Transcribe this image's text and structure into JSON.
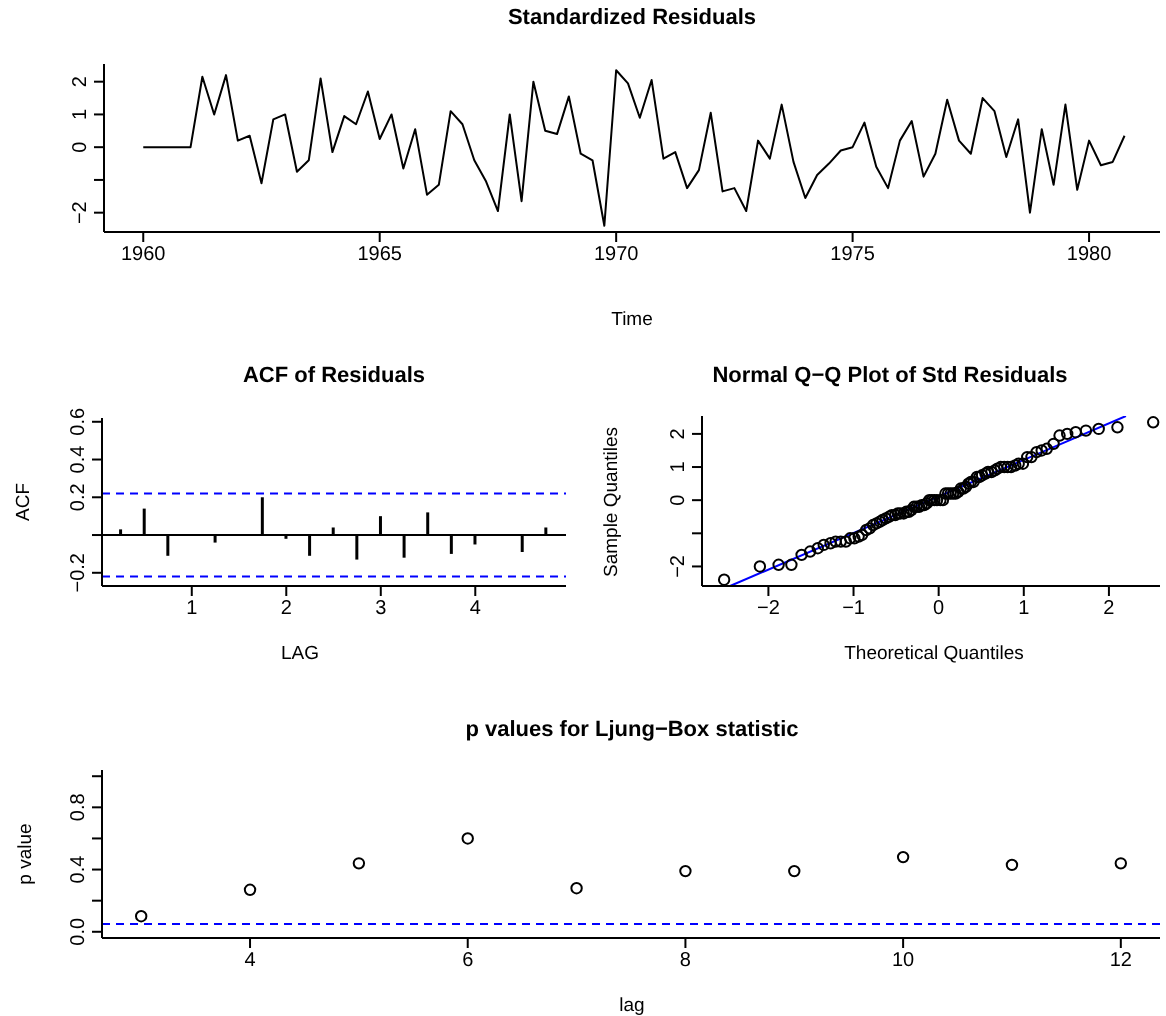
{
  "chart_data": [
    {
      "type": "line",
      "title": "Standardized Residuals",
      "xlabel": "Time",
      "color": "#000000",
      "x": [
        1960,
        1960.25,
        1960.5,
        1960.75,
        1961,
        1961.25,
        1961.5,
        1961.75,
        1962,
        1962.25,
        1962.5,
        1962.75,
        1963,
        1963.25,
        1963.5,
        1963.75,
        1964,
        1964.25,
        1964.5,
        1964.75,
        1965,
        1965.25,
        1965.5,
        1965.75,
        1966,
        1966.25,
        1966.5,
        1966.75,
        1967,
        1967.25,
        1967.5,
        1967.75,
        1968,
        1968.25,
        1968.5,
        1968.75,
        1969,
        1969.25,
        1969.5,
        1969.75,
        1970,
        1970.25,
        1970.5,
        1970.75,
        1971,
        1971.25,
        1971.5,
        1971.75,
        1972,
        1972.25,
        1972.5,
        1972.75,
        1973,
        1973.25,
        1973.5,
        1973.75,
        1974,
        1974.25,
        1974.5,
        1974.75,
        1975,
        1975.25,
        1975.5,
        1975.75,
        1976,
        1976.25,
        1976.5,
        1976.75,
        1977,
        1977.25,
        1977.5,
        1977.75,
        1978,
        1978.25,
        1978.5,
        1978.75,
        1979,
        1979.25,
        1979.5,
        1979.75,
        1980,
        1980.25,
        1980.5,
        1980.75
      ],
      "values": [
        0,
        0,
        0,
        0,
        0,
        2.15,
        1.0,
        2.2,
        0.2,
        0.35,
        -1.1,
        0.85,
        1.0,
        -0.75,
        -0.4,
        2.1,
        -0.15,
        0.95,
        0.7,
        1.7,
        0.25,
        1.0,
        -0.65,
        0.55,
        -1.45,
        -1.15,
        1.1,
        0.7,
        -0.4,
        -1.05,
        -1.95,
        1.0,
        -1.65,
        2.0,
        0.5,
        0.4,
        1.55,
        -0.2,
        -0.4,
        -2.4,
        2.35,
        1.95,
        0.9,
        2.05,
        -0.35,
        -0.15,
        -1.25,
        -0.7,
        1.05,
        -1.35,
        -1.25,
        -1.95,
        0.2,
        -0.35,
        1.3,
        -0.45,
        -1.55,
        -0.85,
        -0.5,
        -0.1,
        0.0,
        0.75,
        -0.6,
        -1.25,
        0.2,
        0.8,
        -0.9,
        -0.2,
        1.45,
        0.2,
        -0.2,
        1.5,
        1.1,
        -0.3,
        0.85,
        -2.0,
        0.55,
        -1.15,
        1.3,
        -1.3,
        0.2,
        -0.55,
        -0.45,
        0.35
      ],
      "xlim": [
        1959.17,
        1981.5
      ],
      "xticks": [
        1960,
        1965,
        1970,
        1975,
        1980
      ],
      "ylim": [
        -2.59,
        2.54
      ],
      "yticks": [
        -2,
        {
          "value": -1,
          "label": null
        },
        0,
        1,
        2
      ]
    },
    {
      "type": "bar",
      "title": "ACF of Residuals",
      "xlabel": "LAG",
      "ylabel": "ACF",
      "color": "#000000",
      "x": [
        0.25,
        0.5,
        0.75,
        1.0,
        1.25,
        1.5,
        1.75,
        2.0,
        2.25,
        2.5,
        2.75,
        3.0,
        3.25,
        3.5,
        3.75,
        4.0,
        4.25,
        4.5,
        4.75
      ],
      "values": [
        0.03,
        0.14,
        -0.11,
        0.0,
        -0.04,
        0.0,
        0.2,
        -0.02,
        -0.11,
        0.04,
        -0.13,
        0.1,
        -0.12,
        0.12,
        -0.1,
        -0.05,
        0.0,
        -0.09,
        0.04
      ],
      "xlim": [
        0.05,
        4.96
      ],
      "xticks": [
        1,
        2,
        3,
        4
      ],
      "ylim": [
        -0.27,
        0.62
      ],
      "yticks": [
        -0.2,
        {
          "value": 0,
          "label": null
        },
        0.2,
        0.4,
        0.6
      ],
      "ref_lines": [
        {
          "axis": "y",
          "value": 0.22,
          "color": "#0000ff",
          "line_style": "dashed"
        },
        {
          "axis": "y",
          "value": -0.22,
          "color": "#0000ff",
          "line_style": "dashed"
        },
        {
          "axis": "y",
          "value": 0,
          "color": "#000000",
          "line_style": "solid"
        }
      ]
    },
    {
      "type": "scatter",
      "title": "Normal Q−Q Plot of Std Residuals",
      "xlabel": "Theoretical Quantiles",
      "ylabel": "Sample Quantiles",
      "series": [
        {
          "marker": "circle",
          "color": "#000000",
          "x": [
            -2.52,
            -2.1,
            -1.88,
            -1.73,
            -1.61,
            -1.51,
            -1.42,
            -1.35,
            -1.27,
            -1.21,
            -1.15,
            -1.09,
            -1.04,
            -0.99,
            -0.94,
            -0.9,
            -0.85,
            -0.81,
            -0.77,
            -0.73,
            -0.69,
            -0.66,
            -0.62,
            -0.58,
            -0.55,
            -0.51,
            -0.48,
            -0.45,
            -0.41,
            -0.38,
            -0.35,
            -0.32,
            -0.29,
            -0.26,
            -0.23,
            -0.2,
            -0.17,
            -0.14,
            -0.11,
            -0.08,
            -0.05,
            -0.02,
            0.02,
            0.05,
            0.08,
            0.11,
            0.14,
            0.17,
            0.2,
            0.23,
            0.26,
            0.29,
            0.32,
            0.35,
            0.38,
            0.41,
            0.45,
            0.48,
            0.51,
            0.55,
            0.58,
            0.62,
            0.66,
            0.69,
            0.73,
            0.77,
            0.81,
            0.85,
            0.9,
            0.94,
            0.99,
            1.04,
            1.09,
            1.15,
            1.21,
            1.27,
            1.35,
            1.42,
            1.51,
            1.61,
            1.73,
            1.88,
            2.1,
            2.52
          ],
          "values": [
            -2.4,
            -2.0,
            -1.95,
            -1.95,
            -1.65,
            -1.55,
            -1.45,
            -1.35,
            -1.3,
            -1.25,
            -1.25,
            -1.25,
            -1.15,
            -1.15,
            -1.1,
            -1.05,
            -0.9,
            -0.85,
            -0.75,
            -0.7,
            -0.65,
            -0.6,
            -0.55,
            -0.5,
            -0.45,
            -0.45,
            -0.4,
            -0.4,
            -0.4,
            -0.35,
            -0.35,
            -0.3,
            -0.2,
            -0.2,
            -0.2,
            -0.15,
            -0.15,
            -0.1,
            0,
            0,
            0,
            0,
            0,
            0,
            0.2,
            0.2,
            0.2,
            0.2,
            0.2,
            0.25,
            0.35,
            0.35,
            0.4,
            0.5,
            0.55,
            0.55,
            0.7,
            0.7,
            0.75,
            0.8,
            0.85,
            0.85,
            0.9,
            0.95,
            1.0,
            1.0,
            1.0,
            1.0,
            1.05,
            1.1,
            1.1,
            1.3,
            1.3,
            1.45,
            1.5,
            1.55,
            1.7,
            1.95,
            2.0,
            2.05,
            2.1,
            2.15,
            2.2,
            2.35
          ]
        },
        {
          "type": "line",
          "color": "#0000ff",
          "x": [
            -2.45,
            2.2
          ],
          "values": [
            -2.59,
            2.54
          ]
        }
      ],
      "xlim": [
        -2.78,
        2.6
      ],
      "xticks": [
        -2,
        -1,
        0,
        1,
        2
      ],
      "ylim": [
        -2.59,
        2.54
      ],
      "yticks": [
        -2,
        {
          "value": -1,
          "label": null
        },
        0,
        1,
        2
      ]
    },
    {
      "type": "scatter",
      "title": "p values for Ljung−Box statistic",
      "xlabel": "lag",
      "ylabel": "p value",
      "marker": "circle",
      "color": "#000000",
      "x": [
        3,
        4,
        5,
        6,
        7,
        8,
        9,
        10,
        11,
        12
      ],
      "values": [
        0.1,
        0.27,
        0.44,
        0.6,
        0.28,
        0.39,
        0.39,
        0.48,
        0.43,
        0.44
      ],
      "xlim": [
        2.64,
        12.36
      ],
      "xticks": [
        4,
        6,
        8,
        10,
        12
      ],
      "ylim": [
        -0.04,
        1.04
      ],
      "yticks": [
        {
          "value": 0,
          "label": "0.0"
        },
        {
          "value": 0.2,
          "label": null
        },
        0.4,
        {
          "value": 0.6,
          "label": null
        },
        0.8,
        {
          "value": 1.0,
          "label": null
        }
      ],
      "ref_lines": [
        {
          "axis": "y",
          "value": 0.05,
          "color": "#0000ff",
          "line_style": "dashed"
        }
      ]
    }
  ]
}
